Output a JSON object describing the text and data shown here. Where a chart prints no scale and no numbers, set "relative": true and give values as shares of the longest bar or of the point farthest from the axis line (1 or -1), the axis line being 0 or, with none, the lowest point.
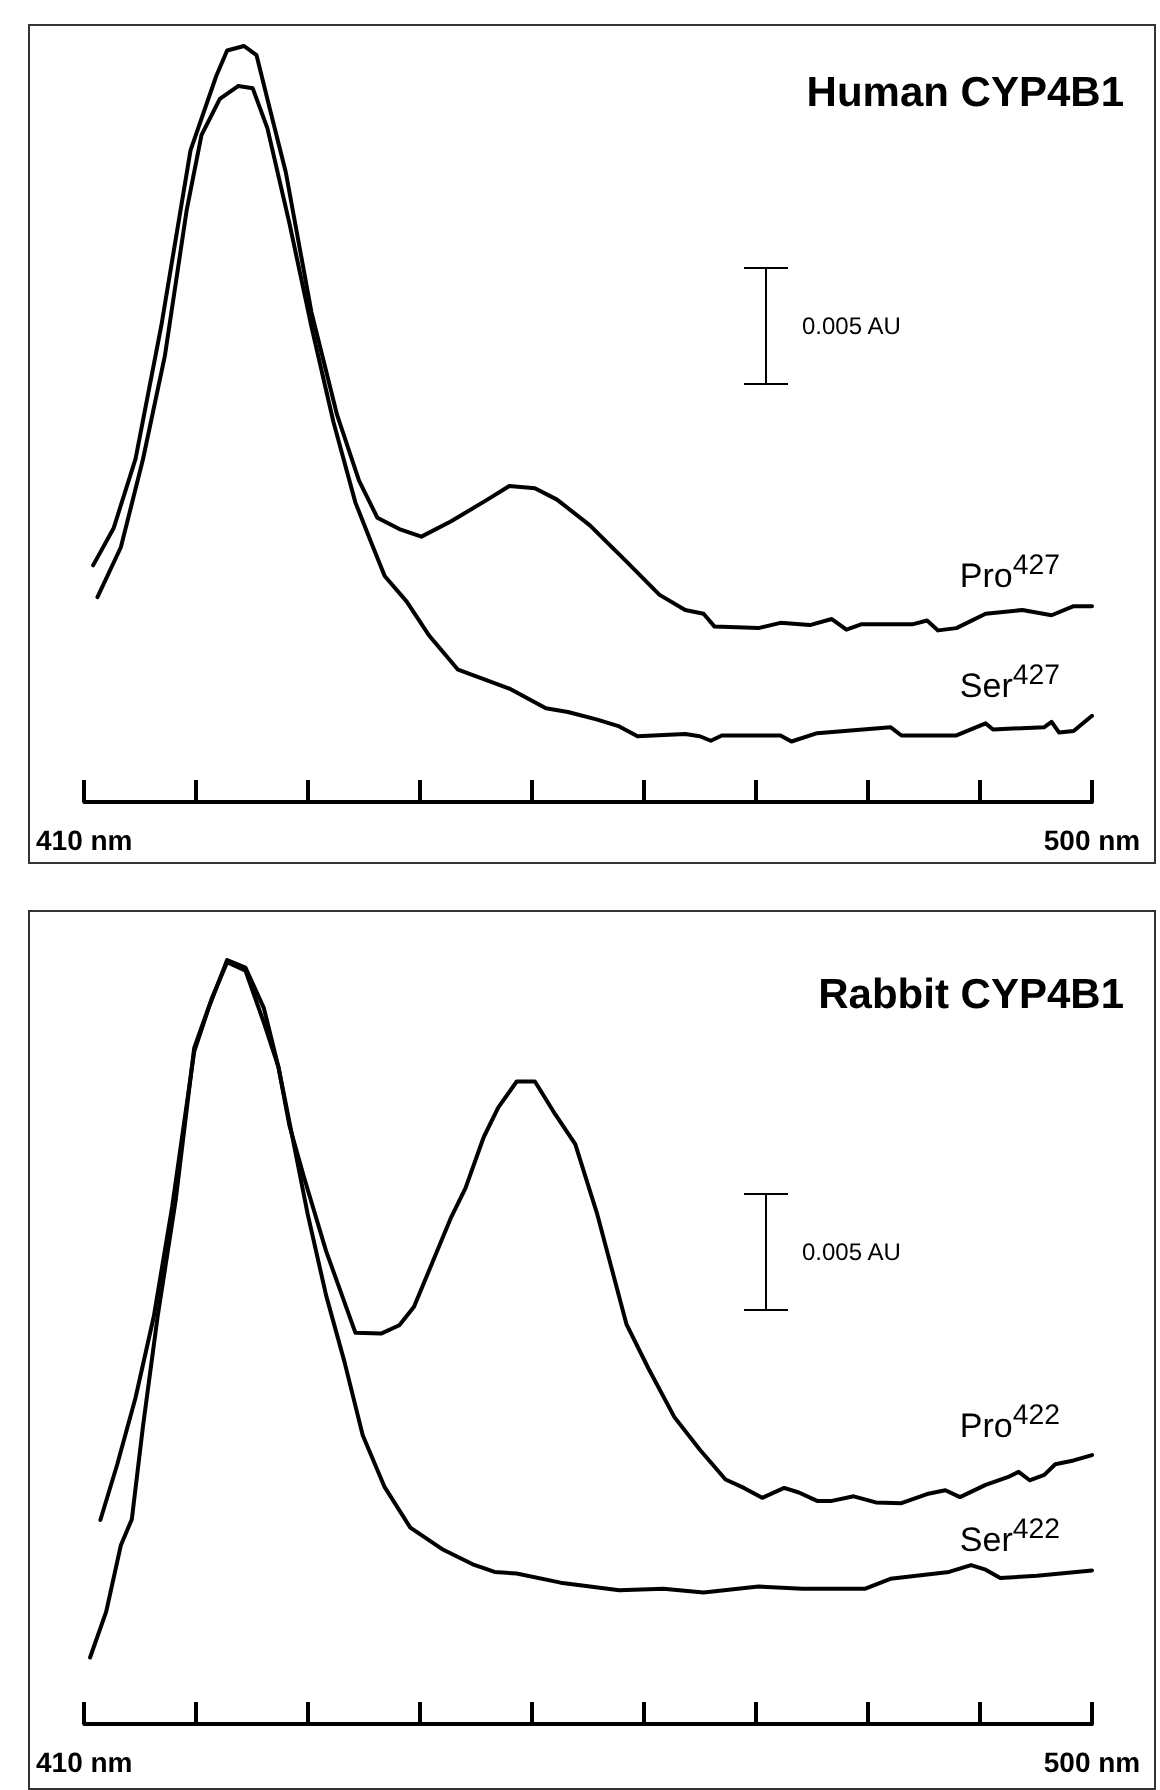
{
  "chart_data": [
    {
      "type": "line",
      "title": "Human CYP4B1",
      "relative": true,
      "marker": "none",
      "line_style": "solid",
      "xlim": [
        410,
        500
      ],
      "xticks": [
        {
          "value": 410,
          "label": "410 nm"
        },
        {
          "value": 420,
          "label": null
        },
        {
          "value": 430,
          "label": null
        },
        {
          "value": 440,
          "label": null
        },
        {
          "value": 450,
          "label": null
        },
        {
          "value": 460,
          "label": null
        },
        {
          "value": 470,
          "label": null
        },
        {
          "value": 480,
          "label": null
        },
        {
          "value": 490,
          "label": null
        },
        {
          "value": 500,
          "label": "500 nm"
        }
      ],
      "annotations": [
        "0.005 AU"
      ],
      "series": [
        {
          "name": "Pro$^{427}$",
          "color": "#000000",
          "x": [
            410.79,
            412.62,
            414.58,
            416.87,
            419.49,
            421.78,
            422.76,
            424.27,
            425.38,
            426.69,
            428.0,
            430.29,
            432.58,
            434.54,
            436.18,
            438.14,
            440.11,
            442.73,
            446.0,
            447.96,
            450.25,
            452.22,
            455.16,
            458.43,
            461.38,
            463.67,
            465.31,
            466.29,
            470.21,
            472.18,
            474.8,
            476.76,
            478.07,
            479.38,
            483.96,
            485.27,
            486.25,
            487.89,
            490.5,
            493.78,
            496.39,
            498.36,
            500.0
          ],
          "values": [
            0.313,
            0.362,
            0.454,
            0.629,
            0.862,
            0.96,
            0.994,
            1.0,
            0.988,
            0.91,
            0.833,
            0.648,
            0.512,
            0.425,
            0.376,
            0.361,
            0.351,
            0.371,
            0.4,
            0.418,
            0.415,
            0.4,
            0.366,
            0.318,
            0.274,
            0.254,
            0.249,
            0.232,
            0.23,
            0.237,
            0.234,
            0.242,
            0.228,
            0.235,
            0.235,
            0.24,
            0.227,
            0.23,
            0.249,
            0.254,
            0.247,
            0.259,
            0.259
          ]
        },
        {
          "name": "Ser$^{427}$",
          "color": "#000000",
          "x": [
            411.18,
            413.27,
            415.24,
            417.2,
            419.16,
            420.47,
            422.11,
            423.74,
            425.05,
            426.36,
            428.33,
            430.29,
            432.25,
            434.22,
            435.53,
            436.83,
            438.8,
            440.76,
            443.38,
            447.96,
            451.23,
            453.2,
            455.82,
            457.78,
            459.41,
            463.67,
            464.98,
            465.96,
            466.94,
            472.18,
            473.16,
            475.45,
            482.0,
            482.98,
            487.89,
            490.5,
            491.16,
            495.74,
            496.39,
            497.05,
            498.36,
            500.0
          ],
          "values": [
            0.271,
            0.337,
            0.453,
            0.59,
            0.784,
            0.882,
            0.93,
            0.947,
            0.944,
            0.891,
            0.765,
            0.629,
            0.503,
            0.396,
            0.347,
            0.299,
            0.265,
            0.221,
            0.175,
            0.15,
            0.124,
            0.119,
            0.109,
            0.1,
            0.087,
            0.09,
            0.087,
            0.081,
            0.088,
            0.088,
            0.08,
            0.091,
            0.099,
            0.088,
            0.088,
            0.104,
            0.096,
            0.099,
            0.106,
            0.092,
            0.094,
            0.114
          ]
        }
      ]
    },
    {
      "type": "line",
      "title": "Rabbit CYP4B1",
      "relative": true,
      "marker": "none",
      "line_style": "solid",
      "xlim": [
        410,
        500
      ],
      "xticks": [
        {
          "value": 410,
          "label": "410 nm"
        },
        {
          "value": 420,
          "label": null
        },
        {
          "value": 430,
          "label": null
        },
        {
          "value": 440,
          "label": null
        },
        {
          "value": 450,
          "label": null
        },
        {
          "value": 460,
          "label": null
        },
        {
          "value": 470,
          "label": null
        },
        {
          "value": 480,
          "label": null
        },
        {
          "value": 490,
          "label": null
        },
        {
          "value": 500,
          "label": "500 nm"
        }
      ],
      "annotations": [
        "0.005 AU"
      ],
      "series": [
        {
          "name": "Pro$^{422}$",
          "color": "#000000",
          "x": [
            411.44,
            412.95,
            414.58,
            416.22,
            417.85,
            419.82,
            421.13,
            422.76,
            424.4,
            426.04,
            427.34,
            428.33,
            429.64,
            431.6,
            434.22,
            436.51,
            438.14,
            439.45,
            441.09,
            442.73,
            444.04,
            445.67,
            446.98,
            448.62,
            450.25,
            451.89,
            453.85,
            455.82,
            458.43,
            460.4,
            462.69,
            464.98,
            467.27,
            468.91,
            470.54,
            472.51,
            473.82,
            475.45,
            476.76,
            478.72,
            480.69,
            482.98,
            485.27,
            486.91,
            488.21,
            490.5,
            492.47,
            493.45,
            494.43,
            495.74,
            496.72,
            498.36,
            500.0
          ],
          "values": [
            0.267,
            0.34,
            0.427,
            0.534,
            0.677,
            0.88,
            0.938,
            1.0,
            0.99,
            0.937,
            0.86,
            0.783,
            0.715,
            0.619,
            0.512,
            0.511,
            0.522,
            0.546,
            0.604,
            0.662,
            0.701,
            0.768,
            0.807,
            0.841,
            0.841,
            0.802,
            0.759,
            0.667,
            0.523,
            0.465,
            0.402,
            0.359,
            0.32,
            0.309,
            0.296,
            0.309,
            0.303,
            0.292,
            0.292,
            0.298,
            0.29,
            0.289,
            0.301,
            0.306,
            0.297,
            0.313,
            0.323,
            0.33,
            0.319,
            0.326,
            0.34,
            0.345,
            0.352
          ]
        },
        {
          "name": "Ser$^{422}$",
          "color": "#000000",
          "x": [
            410.52,
            411.96,
            413.27,
            414.25,
            415.24,
            416.55,
            418.18,
            419.82,
            421.45,
            422.76,
            424.4,
            426.04,
            427.34,
            428.65,
            429.96,
            431.6,
            433.24,
            434.87,
            436.83,
            439.12,
            442.07,
            444.69,
            446.65,
            448.62,
            452.54,
            457.78,
            461.71,
            465.31,
            470.21,
            474.14,
            479.7,
            482.0,
            487.23,
            489.2,
            490.5,
            491.81,
            495.09,
            500.0
          ],
          "values": [
            0.087,
            0.147,
            0.234,
            0.268,
            0.389,
            0.533,
            0.687,
            0.885,
            0.952,
            0.997,
            0.986,
            0.918,
            0.86,
            0.764,
            0.667,
            0.561,
            0.474,
            0.378,
            0.31,
            0.257,
            0.228,
            0.209,
            0.199,
            0.197,
            0.185,
            0.175,
            0.177,
            0.172,
            0.18,
            0.177,
            0.177,
            0.19,
            0.199,
            0.208,
            0.202,
            0.191,
            0.194,
            0.201
          ]
        }
      ]
    }
  ]
}
